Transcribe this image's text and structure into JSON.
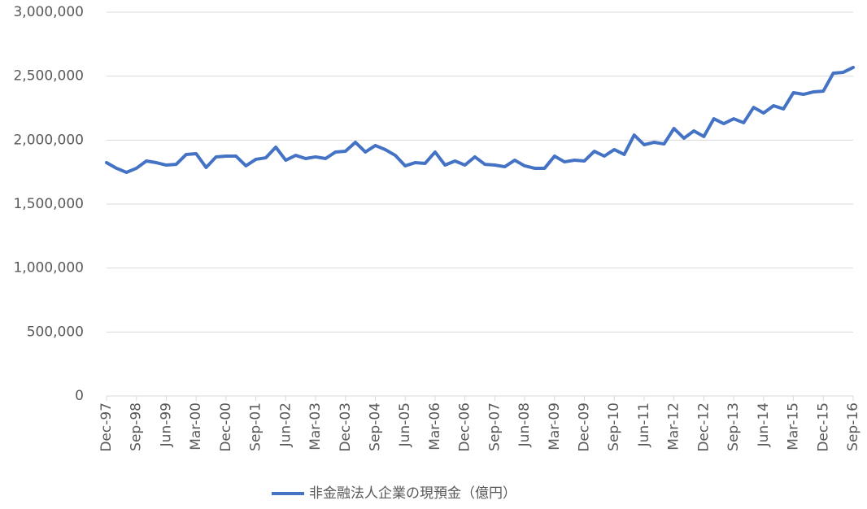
{
  "chart_data": {
    "type": "line",
    "categories": [
      "Dec-97",
      null,
      null,
      "Sep-98",
      null,
      null,
      "Jun-99",
      null,
      null,
      "Mar-00",
      null,
      null,
      "Dec-00",
      null,
      null,
      "Sep-01",
      null,
      null,
      "Jun-02",
      null,
      null,
      "Mar-03",
      null,
      null,
      "Dec-03",
      null,
      null,
      "Sep-04",
      null,
      null,
      "Jun-05",
      null,
      null,
      "Mar-06",
      null,
      null,
      "Dec-06",
      null,
      null,
      "Sep-07",
      null,
      null,
      "Jun-08",
      null,
      null,
      "Mar-09",
      null,
      null,
      "Dec-09",
      null,
      null,
      "Sep-10",
      null,
      null,
      "Jun-11",
      null,
      null,
      "Mar-12",
      null,
      null,
      "Dec-12",
      null,
      null,
      "Sep-13",
      null,
      null,
      "Jun-14",
      null,
      null,
      "Mar-15",
      null,
      null,
      "Dec-15",
      null,
      null,
      "Sep-16"
    ],
    "series": [
      {
        "name": "非金融法人企業の現預金（億円）",
        "color": "#4472c4",
        "values": [
          1824000,
          1780000,
          1748000,
          1780000,
          1837000,
          1824000,
          1805000,
          1811000,
          1888000,
          1894000,
          1786000,
          1869000,
          1875000,
          1875000,
          1799000,
          1850000,
          1862000,
          1945000,
          1843000,
          1881000,
          1856000,
          1869000,
          1856000,
          1907000,
          1913000,
          1983000,
          1907000,
          1958000,
          1926000,
          1881000,
          1799000,
          1824000,
          1818000,
          1907000,
          1805000,
          1837000,
          1805000,
          1869000,
          1811000,
          1805000,
          1792000,
          1843000,
          1799000,
          1780000,
          1780000,
          1875000,
          1830000,
          1843000,
          1837000,
          1913000,
          1875000,
          1926000,
          1888000,
          2040000,
          1964000,
          1983000,
          1970000,
          2091000,
          2015000,
          2072000,
          2028000,
          2167000,
          2129000,
          2167000,
          2136000,
          2256000,
          2212000,
          2269000,
          2244000,
          2371000,
          2358000,
          2377000,
          2383000,
          2523000,
          2530000,
          2568000
        ]
      }
    ],
    "ylim": [
      0,
      3000000
    ],
    "yticks": [
      0,
      {
        "value": 500000,
        "label": "500,000"
      },
      {
        "value": 1000000,
        "label": "1,000,000"
      },
      {
        "value": 1500000,
        "label": "1,500,000"
      },
      {
        "value": 2000000,
        "label": "2,000,000"
      },
      {
        "value": 2500000,
        "label": "2,500,000"
      },
      {
        "value": 3000000,
        "label": "3,000,000"
      }
    ],
    "grid": true,
    "legend": "bottom"
  }
}
